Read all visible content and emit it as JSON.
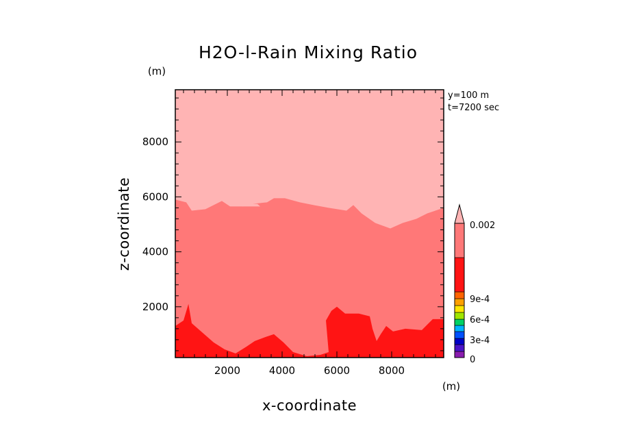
{
  "chart_data": {
    "type": "heatmap",
    "title": "H2O-l-Rain Mixing Ratio",
    "xlabel": "x-coordinate",
    "ylabel": "z-coordinate",
    "x_unit": "(m)",
    "y_unit": "(m)",
    "xlim": [
      100,
      9900
    ],
    "ylim": [
      150,
      9900
    ],
    "xticks": [
      2000,
      4000,
      6000,
      8000
    ],
    "yticks": [
      2000,
      4000,
      6000,
      8000
    ],
    "annotations": [
      "y=100 m",
      "t=7200 sec"
    ],
    "colorbar": {
      "tick_labels": [
        "0.002",
        "9e-4",
        "6e-4",
        "3e-4",
        "0"
      ],
      "tick_values": [
        0.002,
        0.0009,
        0.0006,
        0.0003,
        0
      ],
      "levels": [
        {
          "from": 0,
          "to": 0.0001,
          "color": "#8a1cae"
        },
        {
          "from": 0.0001,
          "to": 0.0002,
          "color": "#4a14c8"
        },
        {
          "from": 0.0002,
          "to": 0.0003,
          "color": "#0000c8"
        },
        {
          "from": 0.0003,
          "to": 0.0004,
          "color": "#0050ff"
        },
        {
          "from": 0.0004,
          "to": 0.0005,
          "color": "#00b4ff"
        },
        {
          "from": 0.0005,
          "to": 0.0006,
          "color": "#00d264"
        },
        {
          "from": 0.0006,
          "to": 0.0007,
          "color": "#a0e600"
        },
        {
          "from": 0.0007,
          "to": 0.0008,
          "color": "#ffe600"
        },
        {
          "from": 0.0008,
          "to": 0.0009,
          "color": "#ffa000"
        },
        {
          "from": 0.0009,
          "to": 0.001,
          "color": "#ff6400"
        },
        {
          "from": 0.001,
          "to": 0.0015,
          "color": "#ff1414"
        },
        {
          "from": 0.0015,
          "to": 0.002,
          "color": "#ff7878"
        },
        {
          "from": 0.002,
          "to": null,
          "color": "#ffb4b4"
        }
      ]
    },
    "regions": [
      {
        "name": "upper",
        "level_color": "#ffb4b4",
        "boundary": [
          [
            100,
            9900
          ],
          [
            9900,
            9900
          ],
          [
            9900,
            5600
          ],
          [
            9300,
            5400
          ],
          [
            8900,
            5200
          ],
          [
            8400,
            5050
          ],
          [
            7950,
            4850
          ],
          [
            7400,
            5050
          ],
          [
            6900,
            5400
          ],
          [
            6600,
            5700
          ],
          [
            6350,
            5500
          ],
          [
            5700,
            5600
          ],
          [
            5150,
            5700
          ],
          [
            4650,
            5800
          ],
          [
            4100,
            5950
          ],
          [
            3700,
            5950
          ],
          [
            3450,
            5800
          ],
          [
            2950,
            5750
          ],
          [
            2550,
            5650
          ],
          [
            2100,
            5650
          ],
          [
            1800,
            5850
          ],
          [
            1200,
            5550
          ],
          [
            700,
            5500
          ],
          [
            500,
            5800
          ],
          [
            100,
            5900
          ]
        ]
      },
      {
        "name": "upper-inclusion",
        "level_color": "#ffb4b4",
        "boundary": [
          [
            2450,
            5780
          ],
          [
            3100,
            5740
          ],
          [
            3200,
            5650
          ],
          [
            2550,
            5650
          ]
        ]
      },
      {
        "name": "lower",
        "level_color": "#ff1414",
        "boundary": [
          [
            100,
            1300
          ],
          [
            400,
            1500
          ],
          [
            580,
            2100
          ],
          [
            700,
            1400
          ],
          [
            1100,
            1050
          ],
          [
            1500,
            700
          ],
          [
            1900,
            450
          ],
          [
            2300,
            300
          ],
          [
            2700,
            550
          ],
          [
            3000,
            750
          ],
          [
            3400,
            900
          ],
          [
            3700,
            1000
          ],
          [
            4050,
            700
          ],
          [
            4400,
            350
          ],
          [
            4900,
            200
          ],
          [
            5400,
            250
          ],
          [
            5700,
            350
          ],
          [
            5600,
            1500
          ],
          [
            5800,
            1850
          ],
          [
            6000,
            2000
          ],
          [
            6300,
            1750
          ],
          [
            6800,
            1750
          ],
          [
            7200,
            1650
          ],
          [
            7300,
            1200
          ],
          [
            7450,
            750
          ],
          [
            7600,
            1000
          ],
          [
            7800,
            1300
          ],
          [
            8050,
            1100
          ],
          [
            8500,
            1200
          ],
          [
            9100,
            1150
          ],
          [
            9500,
            1550
          ],
          [
            9900,
            1550
          ],
          [
            9900,
            150
          ],
          [
            100,
            150
          ]
        ]
      }
    ],
    "background_level_color": "#ff7878"
  }
}
